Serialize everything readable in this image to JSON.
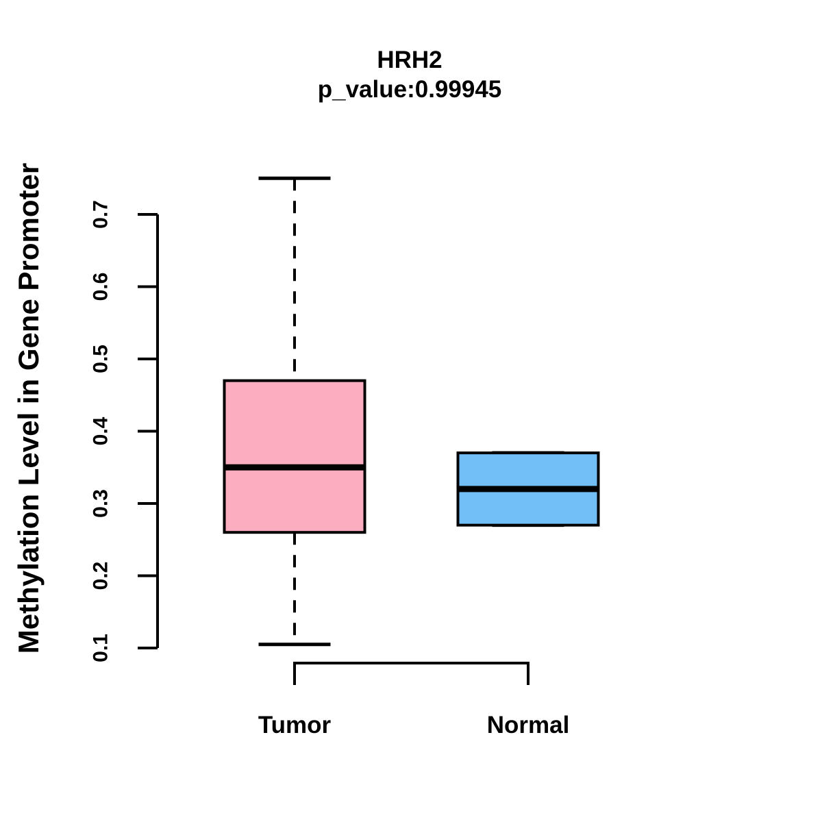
{
  "title": "HRH2",
  "subtitle": "p_value:0.99945",
  "p_value": 0.99945,
  "chart_data": {
    "type": "boxplot",
    "title": "HRH2",
    "subtitle": "p_value:0.99945",
    "p_value": 0.99945,
    "ylabel": "Methylation Level in Gene Promoter",
    "xlabel": "",
    "ylim": [
      0.1,
      0.7
    ],
    "yticks": [
      0.1,
      0.2,
      0.3,
      0.4,
      0.5,
      0.6,
      0.7
    ],
    "grid": false,
    "legend": false,
    "categories": [
      "Tumor",
      "Normal"
    ],
    "groups": [
      {
        "label": "Tumor",
        "color": "#FCAEC0",
        "whisker_low": 0.105,
        "q1": 0.26,
        "median": 0.35,
        "q3": 0.47,
        "whisker_high": 0.75,
        "outliers": []
      },
      {
        "label": "Normal",
        "color": "#72BFF7",
        "whisker_low": 0.27,
        "q1": 0.27,
        "median": 0.32,
        "q3": 0.37,
        "whisker_high": 0.37,
        "outliers": []
      }
    ],
    "colors": {
      "tumor_fill": "#FCAEC0",
      "normal_fill": "#72BFF7",
      "line": "#000000",
      "background": "#FFFFFF"
    }
  }
}
